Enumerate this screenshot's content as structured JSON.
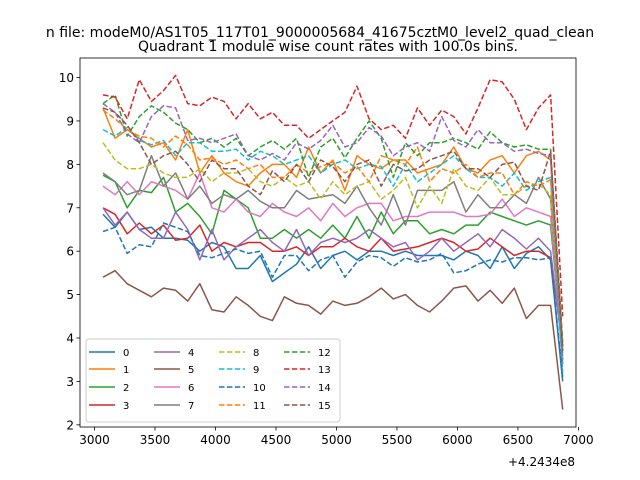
{
  "chart_data": {
    "type": "line",
    "suptitle": "n file: modeM0/AS1T05_117T01_9000005684_41675cztM0_level2_quad_clean",
    "title": "Quadrant 1 module wise count rates with 100.0s bins.",
    "xlabel": "",
    "ylabel": "",
    "x_offset_label": "+4.2434e8",
    "xlim": [
      2880,
      6980
    ],
    "ylim": [
      1.95,
      10.45
    ],
    "xticks": [
      3000,
      3500,
      4000,
      4500,
      5000,
      5500,
      6000,
      6500,
      7000
    ],
    "yticks": [
      2,
      3,
      4,
      5,
      6,
      7,
      8,
      9,
      10
    ],
    "grid": false,
    "legend_position": "lower-left",
    "x": [
      3070,
      3170,
      3270,
      3370,
      3470,
      3570,
      3670,
      3770,
      3870,
      3970,
      4070,
      4170,
      4270,
      4370,
      4470,
      4570,
      4670,
      4770,
      4870,
      4970,
      5070,
      5170,
      5270,
      5370,
      5470,
      5570,
      5670,
      5770,
      5870,
      5970,
      6070,
      6170,
      6270,
      6370,
      6470,
      6570,
      6670,
      6770,
      6870
    ],
    "series": [
      {
        "name": "0",
        "color": "#1f77b4",
        "style": "solid",
        "values": [
          6.85,
          6.55,
          6.9,
          6.5,
          6.55,
          6.3,
          6.3,
          6.25,
          6.0,
          6.2,
          6.1,
          5.6,
          5.6,
          5.9,
          5.3,
          5.5,
          5.7,
          6.1,
          5.6,
          5.9,
          6.0,
          5.8,
          6.0,
          6.0,
          5.9,
          6.0,
          5.9,
          5.9,
          5.9,
          5.8,
          6.0,
          5.9,
          5.6,
          6.1,
          5.6,
          5.95,
          6.1,
          5.8,
          3.0
        ]
      },
      {
        "name": "1",
        "color": "#ff7f0e",
        "style": "solid",
        "values": [
          9.3,
          8.6,
          8.8,
          8.6,
          8.4,
          8.5,
          8.1,
          8.8,
          7.8,
          8.2,
          7.8,
          7.6,
          7.5,
          7.8,
          8.0,
          8.0,
          7.7,
          8.4,
          7.8,
          8.1,
          7.4,
          8.2,
          8.0,
          7.9,
          8.1,
          8.1,
          7.8,
          7.9,
          8.0,
          8.4,
          7.9,
          7.8,
          8.1,
          8.2,
          7.8,
          8.2,
          8.3,
          8.1,
          3.8
        ]
      },
      {
        "name": "2",
        "color": "#2ca02c",
        "style": "solid",
        "values": [
          7.75,
          7.6,
          7.0,
          7.4,
          7.35,
          7.7,
          6.9,
          7.1,
          6.8,
          6.4,
          7.4,
          7.2,
          7.0,
          6.3,
          6.3,
          6.5,
          6.3,
          6.5,
          6.3,
          6.6,
          6.3,
          6.8,
          6.3,
          6.9,
          6.4,
          6.7,
          6.7,
          6.4,
          6.5,
          6.4,
          6.6,
          6.6,
          6.9,
          6.8,
          6.7,
          6.6,
          6.7,
          6.6,
          3.7
        ]
      },
      {
        "name": "3",
        "color": "#d62728",
        "style": "solid",
        "values": [
          7.0,
          6.85,
          6.4,
          6.65,
          6.4,
          6.6,
          6.25,
          6.3,
          6.6,
          6.0,
          6.2,
          6.1,
          6.2,
          6.2,
          6.0,
          6.0,
          6.1,
          5.9,
          6.1,
          6.1,
          6.3,
          6.1,
          6.0,
          6.3,
          6.0,
          6.05,
          6.1,
          6.2,
          6.3,
          6.2,
          6.0,
          6.05,
          6.3,
          6.1,
          5.9,
          6.0,
          6.0,
          5.85,
          3.8
        ]
      },
      {
        "name": "4",
        "color": "#9467bd",
        "style": "solid",
        "values": [
          7.0,
          6.6,
          6.9,
          6.5,
          6.3,
          6.3,
          6.9,
          6.5,
          5.8,
          6.5,
          5.8,
          6.1,
          6.3,
          6.5,
          6.2,
          6.0,
          6.5,
          5.9,
          6.2,
          6.3,
          6.2,
          6.3,
          6.5,
          6.3,
          6.1,
          6.2,
          5.8,
          6.0,
          6.3,
          6.0,
          6.2,
          6.4,
          6.1,
          6.5,
          6.3,
          6.05,
          6.3,
          6.0,
          3.7
        ]
      },
      {
        "name": "5",
        "color": "#8c564b",
        "style": "solid",
        "values": [
          5.4,
          5.55,
          5.25,
          5.1,
          4.95,
          5.15,
          5.1,
          4.85,
          5.25,
          4.65,
          4.6,
          4.95,
          4.75,
          4.5,
          4.4,
          4.95,
          4.8,
          4.75,
          4.55,
          4.85,
          4.75,
          4.8,
          4.95,
          5.15,
          4.9,
          5.0,
          4.75,
          4.6,
          4.85,
          5.15,
          5.2,
          4.85,
          5.1,
          4.8,
          5.15,
          4.45,
          4.75,
          4.75,
          2.35
        ]
      },
      {
        "name": "6",
        "color": "#e377c2",
        "style": "solid",
        "values": [
          7.5,
          7.3,
          7.6,
          7.3,
          7.6,
          7.5,
          7.4,
          7.2,
          7.8,
          7.0,
          6.9,
          7.2,
          6.9,
          6.8,
          7.1,
          6.9,
          6.8,
          7.0,
          6.7,
          7.1,
          6.8,
          7.0,
          7.1,
          7.1,
          6.7,
          6.8,
          6.8,
          6.9,
          6.9,
          6.9,
          6.8,
          6.8,
          6.85,
          7.2,
          6.8,
          7.0,
          6.9,
          6.8,
          3.5
        ]
      },
      {
        "name": "7",
        "color": "#7f7f7f",
        "style": "solid",
        "values": [
          7.8,
          7.6,
          7.3,
          7.4,
          8.2,
          7.5,
          7.8,
          7.2,
          7.5,
          7.1,
          7.3,
          7.2,
          7.4,
          7.15,
          7.0,
          7.0,
          7.4,
          7.2,
          7.25,
          7.3,
          7.1,
          7.5,
          7.0,
          6.6,
          7.3,
          6.6,
          7.4,
          7.4,
          7.4,
          7.6,
          6.9,
          7.3,
          7.0,
          7.0,
          7.3,
          7.1,
          7.7,
          7.2,
          3.4
        ]
      },
      {
        "name": "8",
        "color": "#bcbd22",
        "style": "dashed",
        "values": [
          8.5,
          8.1,
          7.9,
          7.9,
          8.0,
          7.8,
          7.7,
          7.7,
          7.9,
          7.6,
          7.8,
          7.8,
          7.9,
          7.6,
          7.5,
          7.7,
          7.5,
          7.6,
          7.2,
          7.6,
          7.3,
          7.5,
          7.6,
          7.2,
          7.4,
          7.7,
          7.0,
          7.5,
          7.1,
          7.9,
          7.5,
          7.4,
          7.7,
          7.3,
          7.3,
          7.5,
          7.55,
          7.3,
          3.5
        ]
      },
      {
        "name": "9",
        "color": "#17becf",
        "style": "dashed",
        "values": [
          8.8,
          8.65,
          8.85,
          8.55,
          8.45,
          8.55,
          8.2,
          8.5,
          8.5,
          8.3,
          8.3,
          8.35,
          8.1,
          8.3,
          8.2,
          8.0,
          8.1,
          8.2,
          7.8,
          8.0,
          8.1,
          7.9,
          8.0,
          7.95,
          7.5,
          8.0,
          7.6,
          7.8,
          8.0,
          8.2,
          7.9,
          7.7,
          7.7,
          7.5,
          7.8,
          7.4,
          7.6,
          7.7,
          3.2
        ]
      },
      {
        "name": "10",
        "color": "#1f77b4",
        "style": "dashed",
        "values": [
          6.45,
          6.55,
          5.95,
          6.15,
          6.1,
          6.65,
          6.55,
          6.45,
          5.9,
          5.85,
          5.95,
          6.05,
          5.95,
          6.0,
          5.4,
          5.9,
          5.9,
          5.55,
          5.8,
          5.9,
          5.4,
          5.75,
          5.9,
          5.85,
          5.65,
          5.85,
          5.75,
          5.8,
          5.95,
          5.5,
          5.55,
          5.7,
          5.8,
          5.75,
          5.85,
          5.85,
          5.8,
          5.85,
          3.1
        ]
      },
      {
        "name": "11",
        "color": "#ff7f0e",
        "style": "dashed",
        "values": [
          9.25,
          9.05,
          8.8,
          8.65,
          8.6,
          8.4,
          8.65,
          8.45,
          8.1,
          8.15,
          8.0,
          8.1,
          7.9,
          8.0,
          7.7,
          7.7,
          8.0,
          7.8,
          7.95,
          8.05,
          7.8,
          7.95,
          7.6,
          8.2,
          8.1,
          8.0,
          8.4,
          7.6,
          7.9,
          7.8,
          8.0,
          7.7,
          7.8,
          7.8,
          7.3,
          7.6,
          7.5,
          7.65,
          3.6
        ]
      },
      {
        "name": "12",
        "color": "#2ca02c",
        "style": "dashed",
        "values": [
          9.4,
          9.6,
          8.65,
          9.1,
          9.35,
          9.2,
          8.95,
          8.8,
          8.5,
          8.6,
          8.4,
          8.6,
          8.2,
          8.4,
          8.55,
          8.35,
          8.6,
          7.7,
          8.4,
          8.6,
          8.15,
          8.6,
          9.0,
          8.6,
          7.7,
          8.5,
          8.2,
          8.5,
          8.5,
          8.6,
          8.5,
          8.35,
          8.75,
          8.5,
          8.4,
          8.45,
          8.35,
          8.35,
          3.9
        ]
      },
      {
        "name": "13",
        "color": "#d62728",
        "style": "dashed",
        "values": [
          9.6,
          9.55,
          9.05,
          9.95,
          9.45,
          9.7,
          10.05,
          9.4,
          9.35,
          9.55,
          9.45,
          9.05,
          9.4,
          9.05,
          9.2,
          8.9,
          8.9,
          8.6,
          8.8,
          9.0,
          9.2,
          9.8,
          9.05,
          8.8,
          8.9,
          8.6,
          9.3,
          8.9,
          9.25,
          9.1,
          8.7,
          9.3,
          9.95,
          9.9,
          9.5,
          8.8,
          9.3,
          9.6,
          4.5
        ]
      },
      {
        "name": "14",
        "color": "#9467bd",
        "style": "dashed",
        "values": [
          9.4,
          9.2,
          8.7,
          8.5,
          9.1,
          9.35,
          9.3,
          8.55,
          8.6,
          8.5,
          8.6,
          8.7,
          8.2,
          8.1,
          8.25,
          8.1,
          8.5,
          8.35,
          8.55,
          8.9,
          8.4,
          8.5,
          8.85,
          8.65,
          8.2,
          8.4,
          8.5,
          8.3,
          9.1,
          8.55,
          8.4,
          8.8,
          8.5,
          8.5,
          8.3,
          8.35,
          8.25,
          8.2,
          3.5
        ]
      },
      {
        "name": "15",
        "color": "#8c564b",
        "style": "dashed",
        "values": [
          9.3,
          9.2,
          8.9,
          8.5,
          8.0,
          8.2,
          8.3,
          8.0,
          7.6,
          8.1,
          7.9,
          7.9,
          7.5,
          7.3,
          7.85,
          7.6,
          8.0,
          7.6,
          8.1,
          7.95,
          7.6,
          8.0,
          8.1,
          7.5,
          8.0,
          7.85,
          7.9,
          8.1,
          8.2,
          8.3,
          7.9,
          7.9,
          7.7,
          8.0,
          8.05,
          7.5,
          7.4,
          8.3,
          3.7
        ]
      }
    ]
  }
}
